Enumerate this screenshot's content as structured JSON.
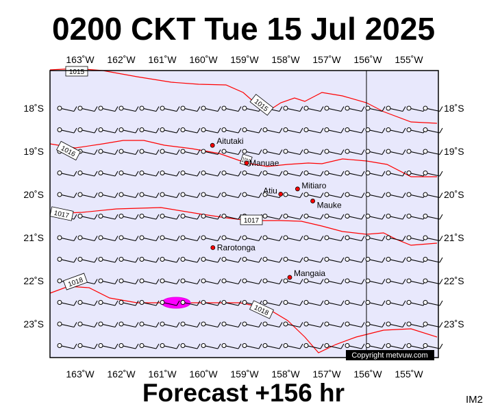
{
  "title": "0200 CKT Tue 15 Jul 2025",
  "footer": "Forecast +156 hr",
  "code": "IM2",
  "copyright": "Copyright metvuw.com",
  "colors": {
    "background": "#e8e8fc",
    "isobar": "#ff0000",
    "rain": "#ff00ff",
    "island": "#ff0000"
  },
  "map_extent": {
    "lon": [
      -163.75,
      -154.55
    ],
    "lat": [
      -17.55,
      -23.65
    ]
  },
  "lon_ticks": [
    "163˚W",
    "162˚W",
    "161˚W",
    "160˚W",
    "159˚W",
    "158˚W",
    "157˚W",
    "156˚W",
    "155˚W"
  ],
  "lat_ticks": [
    "18˚S",
    "19˚S",
    "20˚S",
    "21˚S",
    "22˚S",
    "23˚S"
  ],
  "meridian_line": "156˚W",
  "places": [
    {
      "name": "Aitutaki",
      "lon": -159.78,
      "lat": -18.86
    },
    {
      "name": "Manuae",
      "lon": -158.95,
      "lat": -19.27
    },
    {
      "name": "Atiu",
      "lon": -158.12,
      "lat": -19.99
    },
    {
      "name": "Mitiaro",
      "lon": -157.71,
      "lat": -19.87
    },
    {
      "name": "Mauke",
      "lon": -157.34,
      "lat": -20.15
    },
    {
      "name": "Rarotonga",
      "lon": -159.77,
      "lat": -21.23
    },
    {
      "name": "Mangaia",
      "lon": -157.9,
      "lat": -21.92
    }
  ],
  "isobar_labels": [
    "1015",
    "1015",
    "1016",
    "1016",
    "1017",
    "1017",
    "1018",
    "1018"
  ],
  "wind": {
    "lons": [
      -163.5,
      -163.0,
      -162.5,
      -162.0,
      -161.5,
      -161.0,
      -160.5,
      -160.0,
      -159.5,
      -159.0,
      -158.5,
      -158.0,
      -157.5,
      -157.0,
      -156.5,
      -156.0,
      -155.5,
      -155.0,
      -154.6
    ],
    "lats": [
      -18.0,
      -18.5,
      -19.0,
      -19.5,
      -20.0,
      -20.5,
      -21.0,
      -21.5,
      -22.0,
      -22.5,
      -23.0,
      -23.5
    ],
    "direction": "east-southeast",
    "barbs": "half"
  },
  "rain_area": {
    "lon": -160.6,
    "lat": -22.5
  }
}
